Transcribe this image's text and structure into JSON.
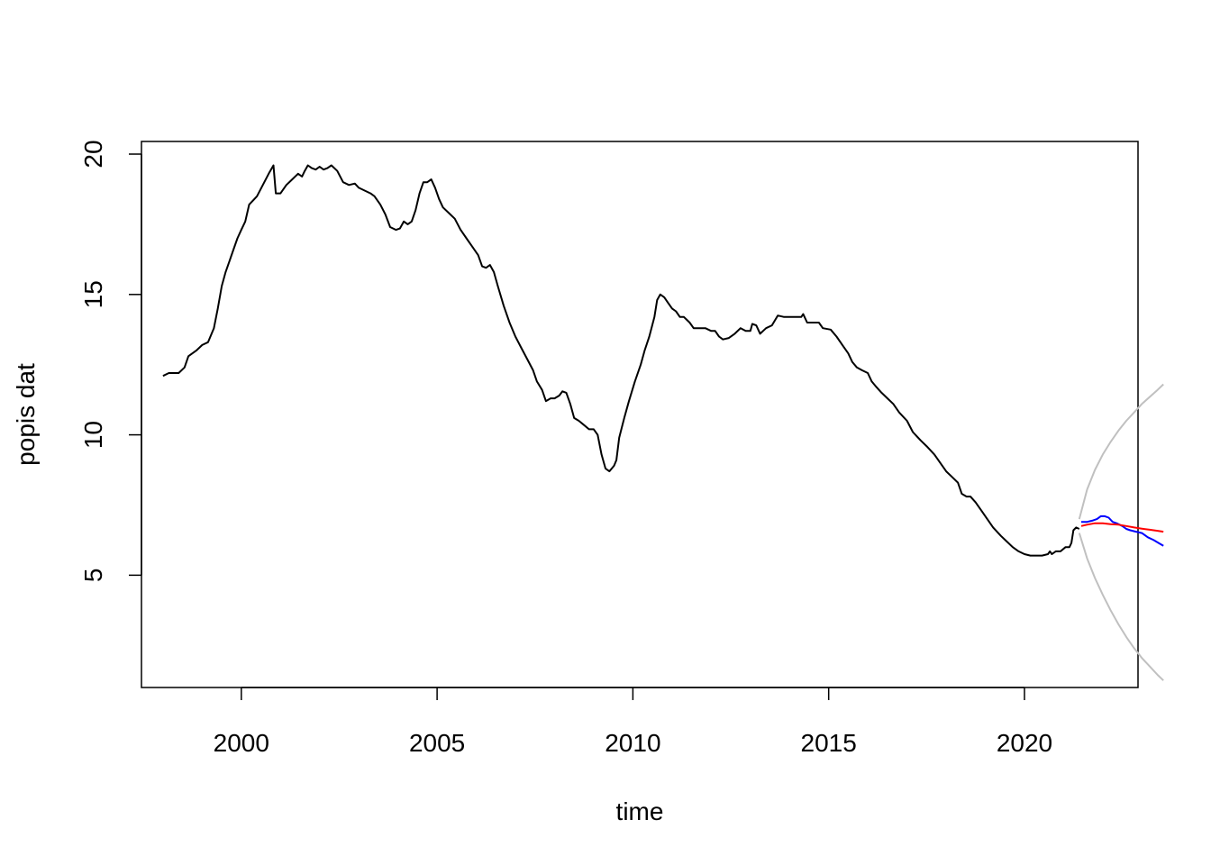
{
  "chart_data": {
    "type": "line",
    "title": "",
    "xlabel": "time",
    "ylabel": "popis dat",
    "xlim": [
      1997.45,
      2022.9
    ],
    "ylim": [
      1.0,
      20.45
    ],
    "x_ticks": [
      2000,
      2005,
      2010,
      2015,
      2020
    ],
    "y_ticks": [
      5,
      10,
      15,
      20
    ],
    "grid": false,
    "legend": "none",
    "series": [
      {
        "color": "#000000",
        "points": [
          [
            1998.0,
            12.1
          ],
          [
            1998.15,
            12.2
          ],
          [
            1998.4,
            12.2
          ],
          [
            1998.55,
            12.4
          ],
          [
            1998.65,
            12.8
          ],
          [
            1998.85,
            13.0
          ],
          [
            1999.0,
            13.2
          ],
          [
            1999.15,
            13.3
          ],
          [
            1999.3,
            13.8
          ],
          [
            1999.4,
            14.5
          ],
          [
            1999.5,
            15.3
          ],
          [
            1999.6,
            15.8
          ],
          [
            1999.7,
            16.2
          ],
          [
            1999.8,
            16.6
          ],
          [
            1999.9,
            17.0
          ],
          [
            2000.0,
            17.3
          ],
          [
            2000.1,
            17.6
          ],
          [
            2000.2,
            18.2
          ],
          [
            2000.3,
            18.35
          ],
          [
            2000.4,
            18.5
          ],
          [
            2000.55,
            18.9
          ],
          [
            2000.7,
            19.3
          ],
          [
            2000.82,
            19.6
          ],
          [
            2000.88,
            18.6
          ],
          [
            2001.0,
            18.6
          ],
          [
            2001.15,
            18.9
          ],
          [
            2001.3,
            19.1
          ],
          [
            2001.45,
            19.3
          ],
          [
            2001.55,
            19.2
          ],
          [
            2001.62,
            19.4
          ],
          [
            2001.7,
            19.6
          ],
          [
            2001.8,
            19.5
          ],
          [
            2001.9,
            19.45
          ],
          [
            2002.0,
            19.55
          ],
          [
            2002.1,
            19.45
          ],
          [
            2002.2,
            19.5
          ],
          [
            2002.3,
            19.6
          ],
          [
            2002.45,
            19.4
          ],
          [
            2002.6,
            19.0
          ],
          [
            2002.75,
            18.9
          ],
          [
            2002.9,
            18.95
          ],
          [
            2003.0,
            18.8
          ],
          [
            2003.15,
            18.7
          ],
          [
            2003.3,
            18.6
          ],
          [
            2003.4,
            18.5
          ],
          [
            2003.55,
            18.2
          ],
          [
            2003.68,
            17.85
          ],
          [
            2003.8,
            17.4
          ],
          [
            2003.95,
            17.3
          ],
          [
            2004.05,
            17.35
          ],
          [
            2004.15,
            17.6
          ],
          [
            2004.25,
            17.5
          ],
          [
            2004.35,
            17.6
          ],
          [
            2004.45,
            18.0
          ],
          [
            2004.55,
            18.6
          ],
          [
            2004.65,
            19.0
          ],
          [
            2004.75,
            19.0
          ],
          [
            2004.85,
            19.1
          ],
          [
            2004.95,
            18.8
          ],
          [
            2005.05,
            18.4
          ],
          [
            2005.15,
            18.1
          ],
          [
            2005.3,
            17.9
          ],
          [
            2005.45,
            17.7
          ],
          [
            2005.6,
            17.3
          ],
          [
            2005.75,
            17.0
          ],
          [
            2005.9,
            16.7
          ],
          [
            2006.05,
            16.4
          ],
          [
            2006.15,
            16.0
          ],
          [
            2006.25,
            15.95
          ],
          [
            2006.35,
            16.05
          ],
          [
            2006.45,
            15.8
          ],
          [
            2006.55,
            15.3
          ],
          [
            2006.7,
            14.6
          ],
          [
            2006.85,
            14.0
          ],
          [
            2007.0,
            13.5
          ],
          [
            2007.15,
            13.1
          ],
          [
            2007.3,
            12.7
          ],
          [
            2007.45,
            12.3
          ],
          [
            2007.55,
            11.9
          ],
          [
            2007.68,
            11.6
          ],
          [
            2007.78,
            11.2
          ],
          [
            2007.9,
            11.3
          ],
          [
            2008.0,
            11.3
          ],
          [
            2008.12,
            11.4
          ],
          [
            2008.2,
            11.55
          ],
          [
            2008.3,
            11.5
          ],
          [
            2008.4,
            11.1
          ],
          [
            2008.5,
            10.6
          ],
          [
            2008.62,
            10.5
          ],
          [
            2008.75,
            10.35
          ],
          [
            2008.88,
            10.2
          ],
          [
            2009.0,
            10.2
          ],
          [
            2009.1,
            10.0
          ],
          [
            2009.2,
            9.3
          ],
          [
            2009.3,
            8.8
          ],
          [
            2009.4,
            8.7
          ],
          [
            2009.52,
            8.9
          ],
          [
            2009.58,
            9.1
          ],
          [
            2009.65,
            9.9
          ],
          [
            2009.78,
            10.6
          ],
          [
            2009.9,
            11.2
          ],
          [
            2010.05,
            11.9
          ],
          [
            2010.2,
            12.5
          ],
          [
            2010.3,
            13.0
          ],
          [
            2010.42,
            13.5
          ],
          [
            2010.55,
            14.2
          ],
          [
            2010.62,
            14.8
          ],
          [
            2010.7,
            15.0
          ],
          [
            2010.8,
            14.9
          ],
          [
            2010.9,
            14.7
          ],
          [
            2011.0,
            14.5
          ],
          [
            2011.1,
            14.4
          ],
          [
            2011.2,
            14.2
          ],
          [
            2011.3,
            14.2
          ],
          [
            2011.45,
            14.0
          ],
          [
            2011.55,
            13.8
          ],
          [
            2011.7,
            13.8
          ],
          [
            2011.85,
            13.8
          ],
          [
            2012.0,
            13.7
          ],
          [
            2012.1,
            13.7
          ],
          [
            2012.2,
            13.5
          ],
          [
            2012.3,
            13.4
          ],
          [
            2012.45,
            13.45
          ],
          [
            2012.6,
            13.6
          ],
          [
            2012.75,
            13.8
          ],
          [
            2012.88,
            13.7
          ],
          [
            2013.0,
            13.7
          ],
          [
            2013.05,
            13.95
          ],
          [
            2013.15,
            13.9
          ],
          [
            2013.25,
            13.6
          ],
          [
            2013.4,
            13.8
          ],
          [
            2013.55,
            13.9
          ],
          [
            2013.7,
            14.25
          ],
          [
            2013.85,
            14.2
          ],
          [
            2014.0,
            14.2
          ],
          [
            2014.15,
            14.2
          ],
          [
            2014.3,
            14.2
          ],
          [
            2014.35,
            14.3
          ],
          [
            2014.45,
            14.0
          ],
          [
            2014.6,
            14.0
          ],
          [
            2014.75,
            14.0
          ],
          [
            2014.85,
            13.8
          ],
          [
            2015.05,
            13.75
          ],
          [
            2015.2,
            13.5
          ],
          [
            2015.35,
            13.2
          ],
          [
            2015.5,
            12.9
          ],
          [
            2015.6,
            12.6
          ],
          [
            2015.72,
            12.4
          ],
          [
            2015.85,
            12.3
          ],
          [
            2016.0,
            12.2
          ],
          [
            2016.1,
            11.9
          ],
          [
            2016.22,
            11.7
          ],
          [
            2016.35,
            11.5
          ],
          [
            2016.5,
            11.3
          ],
          [
            2016.65,
            11.1
          ],
          [
            2016.8,
            10.8
          ],
          [
            2017.0,
            10.5
          ],
          [
            2017.15,
            10.1
          ],
          [
            2017.35,
            9.8
          ],
          [
            2017.5,
            9.6
          ],
          [
            2017.7,
            9.3
          ],
          [
            2017.85,
            9.0
          ],
          [
            2018.0,
            8.7
          ],
          [
            2018.15,
            8.5
          ],
          [
            2018.3,
            8.3
          ],
          [
            2018.4,
            7.9
          ],
          [
            2018.52,
            7.8
          ],
          [
            2018.62,
            7.8
          ],
          [
            2018.75,
            7.6
          ],
          [
            2018.9,
            7.3
          ],
          [
            2019.05,
            7.0
          ],
          [
            2019.2,
            6.7
          ],
          [
            2019.4,
            6.4
          ],
          [
            2019.55,
            6.2
          ],
          [
            2019.7,
            6.0
          ],
          [
            2019.85,
            5.85
          ],
          [
            2020.0,
            5.75
          ],
          [
            2020.15,
            5.7
          ],
          [
            2020.3,
            5.7
          ],
          [
            2020.45,
            5.7
          ],
          [
            2020.6,
            5.75
          ],
          [
            2020.65,
            5.85
          ],
          [
            2020.7,
            5.75
          ],
          [
            2020.8,
            5.85
          ],
          [
            2020.92,
            5.85
          ],
          [
            2021.05,
            6.0
          ],
          [
            2021.15,
            6.0
          ],
          [
            2021.2,
            6.15
          ],
          [
            2021.25,
            6.6
          ],
          [
            2021.32,
            6.7
          ],
          [
            2021.4,
            6.65
          ]
        ]
      },
      {
        "color": "#c0c0c0",
        "points": [
          [
            2021.4,
            7.0
          ],
          [
            2021.6,
            8.05
          ],
          [
            2021.8,
            8.75
          ],
          [
            2022.0,
            9.3
          ],
          [
            2022.2,
            9.75
          ],
          [
            2022.4,
            10.15
          ],
          [
            2022.6,
            10.5
          ],
          [
            2022.8,
            10.8
          ],
          [
            2023.0,
            11.1
          ],
          [
            2023.2,
            11.35
          ],
          [
            2023.4,
            11.6
          ],
          [
            2023.55,
            11.8
          ]
        ]
      },
      {
        "color": "#c0c0c0",
        "points": [
          [
            2021.4,
            6.5
          ],
          [
            2021.6,
            5.6
          ],
          [
            2021.8,
            4.9
          ],
          [
            2022.0,
            4.3
          ],
          [
            2022.2,
            3.75
          ],
          [
            2022.4,
            3.25
          ],
          [
            2022.6,
            2.8
          ],
          [
            2022.8,
            2.4
          ],
          [
            2023.0,
            2.05
          ],
          [
            2023.2,
            1.75
          ],
          [
            2023.4,
            1.45
          ],
          [
            2023.55,
            1.25
          ]
        ]
      },
      {
        "color": "#0000ff",
        "points": [
          [
            2021.45,
            6.9
          ],
          [
            2021.6,
            6.9
          ],
          [
            2021.75,
            6.95
          ],
          [
            2021.85,
            7.0
          ],
          [
            2021.95,
            7.1
          ],
          [
            2022.05,
            7.1
          ],
          [
            2022.15,
            7.05
          ],
          [
            2022.25,
            6.9
          ],
          [
            2022.35,
            6.85
          ],
          [
            2022.5,
            6.75
          ],
          [
            2022.6,
            6.65
          ],
          [
            2022.7,
            6.6
          ],
          [
            2022.85,
            6.55
          ],
          [
            2023.0,
            6.5
          ],
          [
            2023.15,
            6.35
          ],
          [
            2023.3,
            6.25
          ],
          [
            2023.42,
            6.15
          ],
          [
            2023.55,
            6.05
          ]
        ]
      },
      {
        "color": "#ff0000",
        "points": [
          [
            2021.45,
            6.75
          ],
          [
            2021.6,
            6.8
          ],
          [
            2021.8,
            6.85
          ],
          [
            2022.0,
            6.85
          ],
          [
            2022.2,
            6.82
          ],
          [
            2022.4,
            6.8
          ],
          [
            2022.6,
            6.75
          ],
          [
            2022.8,
            6.7
          ],
          [
            2023.0,
            6.66
          ],
          [
            2023.2,
            6.62
          ],
          [
            2023.4,
            6.58
          ],
          [
            2023.55,
            6.55
          ]
        ]
      }
    ]
  }
}
